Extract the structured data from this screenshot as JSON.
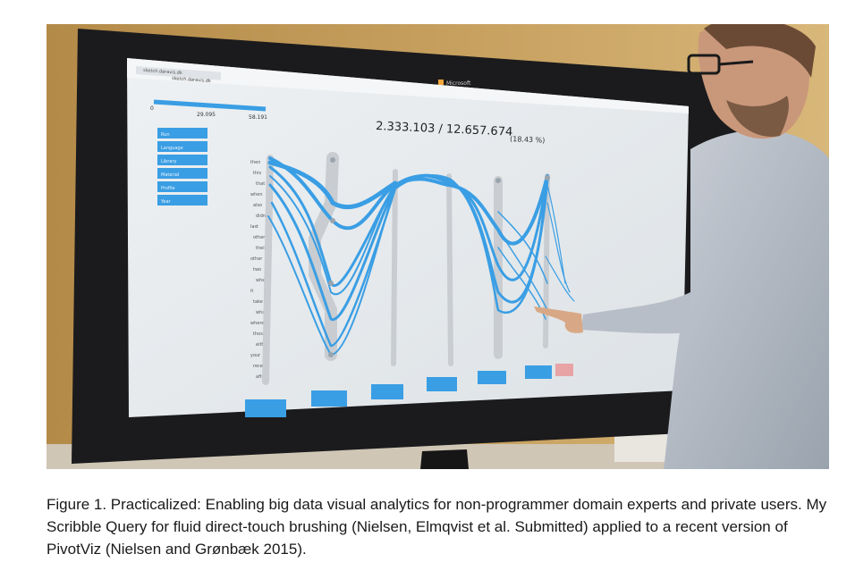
{
  "photo": {
    "browser_url": "sketch.daravis.dk",
    "tab_title": "sketch.daravis.dk",
    "brand": "Microsoft",
    "slider_min": "0",
    "slider_mid": "29.095",
    "slider_max": "58.191",
    "count_text": "2.333.103 / 12.657.674",
    "percent_text": "(18.43 %)",
    "sidebar_items": [
      "Run",
      "Language",
      "Library",
      "Material",
      "Profile",
      "Year"
    ],
    "axis_words": [
      "then",
      "this",
      "that",
      "when",
      "also",
      "didn",
      "last",
      "others",
      "their",
      "other",
      "two",
      "where",
      "it",
      "take",
      "whats",
      "where",
      "those",
      "either",
      "your",
      "recent",
      "after"
    ],
    "colors": {
      "accent": "#3a9ee4",
      "background": "#e6e9ec",
      "frame": "#1b1b1d",
      "wall": "#c29a58",
      "highlight": "#e8a3a5"
    }
  },
  "caption": {
    "text": "Figure 1. Practicalized: Enabling big data visual analytics for non-programmer domain experts and private users. My Scribble Query for fluid direct-touch brushing (Nielsen, Elmqvist et al. Submitted) applied to a recent version of PivotViz (Nielsen and Grønbæk 2015)."
  }
}
